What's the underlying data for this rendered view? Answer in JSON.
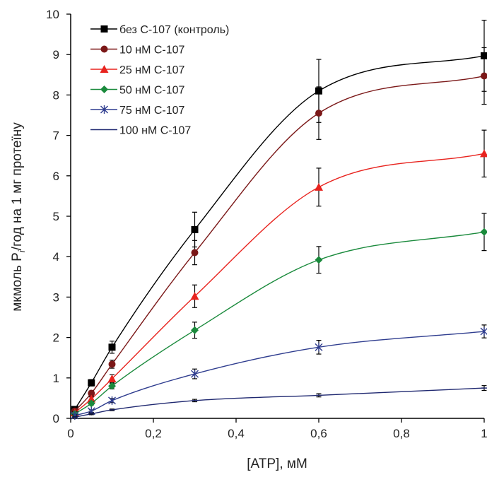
{
  "chart_data": {
    "type": "line",
    "title": "",
    "xlabel": "[ATP], мМ",
    "ylabel_parts": [
      "мкмоль P",
      "i",
      "/год на 1 мг протеїну"
    ],
    "xlim": [
      0,
      1
    ],
    "ylim": [
      0,
      10
    ],
    "x_ticks": [
      0,
      0.2,
      0.4,
      0.6,
      0.8,
      1
    ],
    "x_tick_labels": [
      "0",
      "0,2",
      "0,4",
      "0,6",
      "0,8",
      "1"
    ],
    "y_ticks": [
      0,
      1,
      2,
      3,
      4,
      5,
      6,
      7,
      8,
      9,
      10
    ],
    "y_tick_labels": [
      "0",
      "1",
      "2",
      "3",
      "4",
      "5",
      "6",
      "7",
      "8",
      "9",
      "10"
    ],
    "grid": false,
    "legend_position": "top-left",
    "x": [
      0.01,
      0.05,
      0.1,
      0.3,
      0.6,
      1
    ],
    "series": [
      {
        "name": "без С-107 (контроль)",
        "color": "#000000",
        "marker": "square",
        "values": [
          0.22,
          0.88,
          1.76,
          4.67,
          8.1,
          8.97
        ],
        "errors": [
          0.05,
          0.08,
          0.15,
          0.43,
          0.78,
          0.88
        ]
      },
      {
        "name": "10 нМ С-107",
        "color": "#7b1818",
        "marker": "circle",
        "values": [
          0.18,
          0.62,
          1.34,
          4.1,
          7.55,
          8.47
        ],
        "errors": [
          0.04,
          0.06,
          0.1,
          0.3,
          0.65,
          0.7
        ]
      },
      {
        "name": "25 нМ С-107",
        "color": "#e8231e",
        "marker": "triangle",
        "values": [
          0.14,
          0.48,
          0.98,
          3.02,
          5.72,
          6.55
        ],
        "errors": [
          0.03,
          0.05,
          0.1,
          0.28,
          0.47,
          0.58
        ]
      },
      {
        "name": "50 нМ С-107",
        "color": "#1a8a3c",
        "marker": "diamond",
        "values": [
          0.11,
          0.37,
          0.8,
          2.18,
          3.92,
          4.61
        ],
        "errors": [
          0.02,
          0.04,
          0.07,
          0.2,
          0.33,
          0.46
        ]
      },
      {
        "name": "75 нМ С-107",
        "color": "#2f3d8f",
        "marker": "star",
        "values": [
          0.07,
          0.18,
          0.44,
          1.1,
          1.76,
          2.15
        ],
        "errors": [
          0.02,
          0.03,
          0.05,
          0.12,
          0.17,
          0.16
        ]
      },
      {
        "name": "100 нМ С-107",
        "color": "#1f2870",
        "marker": "none",
        "values": [
          0.03,
          0.11,
          0.21,
          0.44,
          0.57,
          0.75
        ],
        "errors": [
          0.01,
          0.02,
          0.02,
          0.03,
          0.04,
          0.06
        ]
      }
    ]
  }
}
